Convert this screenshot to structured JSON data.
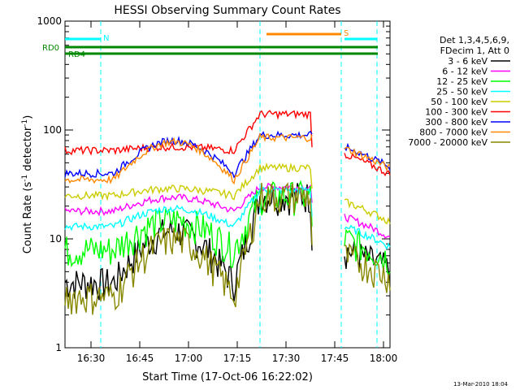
{
  "chart_data": {
    "type": "line",
    "title": "HESSI Observing Summary Count Rates",
    "xlabel": "Start Time (17-Oct-06 16:22:02)",
    "ylabel_base": "Count Rate (s",
    "ylabel_sup1": "-1",
    "ylabel_mid": " detector",
    "ylabel_sup2": "-1",
    "ylabel_end": ")",
    "y_scale": "log",
    "ylim": [
      1,
      1000
    ],
    "xlim_minutes": [
      0,
      100
    ],
    "x_ticks": [
      {
        "label": "16:30",
        "minute": 8
      },
      {
        "label": "16:45",
        "minute": 23
      },
      {
        "label": "17:00",
        "minute": 38
      },
      {
        "label": "17:15",
        "minute": 53
      },
      {
        "label": "17:30",
        "minute": 68
      },
      {
        "label": "17:45",
        "minute": 83
      },
      {
        "label": "18:00",
        "minute": 98
      }
    ],
    "y_ticks": [
      {
        "label": "1",
        "value": 1
      },
      {
        "label": "10",
        "value": 10
      },
      {
        "label": "100",
        "value": 100
      },
      {
        "label": "1000",
        "value": 1000
      }
    ],
    "legend_header": [
      "Det 1,3,4,5,6,9,",
      "FDecim 1, Att 0"
    ],
    "series": [
      {
        "name": "3 - 6 keV",
        "color": "#000000",
        "base": 4,
        "peak": 12,
        "flare": 25,
        "after": 8
      },
      {
        "name": "6 - 12 keV",
        "color": "#ff00ff",
        "base": 18,
        "peak": 24,
        "flare": 30,
        "after": 16
      },
      {
        "name": "12 - 25 keV",
        "color": "#00ff00",
        "base": 8,
        "peak": 15,
        "flare": 25,
        "after": 10
      },
      {
        "name": "25 - 50 keV",
        "color": "#00ffff",
        "base": 13,
        "peak": 19,
        "flare": 28,
        "after": 13
      },
      {
        "name": "50 - 100 keV",
        "color": "#cccc00",
        "base": 25,
        "peak": 29,
        "flare": 45,
        "after": 22
      },
      {
        "name": "100 - 300 keV",
        "color": "#ff0000",
        "base": 65,
        "peak": 70,
        "flare": 140,
        "after": 60
      },
      {
        "name": "300 - 800 keV",
        "color": "#0000ff",
        "base": 40,
        "peak": 80,
        "flare": 90,
        "after": 70
      },
      {
        "name": "800 - 7000 keV",
        "color": "#ff8800",
        "base": 35,
        "peak": 78,
        "flare": 85,
        "after": 68
      },
      {
        "name": "7000 - 20000 keV",
        "color": "#888800",
        "base": 3,
        "peak": 10,
        "flare": 25,
        "after": 7
      }
    ],
    "gaps_minutes": [
      [
        76,
        86
      ]
    ],
    "vertical_markers_minutes": [
      11,
      60,
      85,
      96
    ],
    "flags": [
      {
        "label": "N",
        "color": "#00ffff",
        "segments": [
          [
            0,
            11
          ],
          [
            86,
            96
          ]
        ]
      },
      {
        "label": "S",
        "color": "#ff8800",
        "segments": [
          [
            62,
            85
          ]
        ]
      }
    ],
    "rd_flags": [
      {
        "label": "RD0",
        "color": "#008800"
      },
      {
        "label": "RD4",
        "color": "#008800"
      }
    ]
  },
  "footer_date": "13-Mar-2010 18:04"
}
